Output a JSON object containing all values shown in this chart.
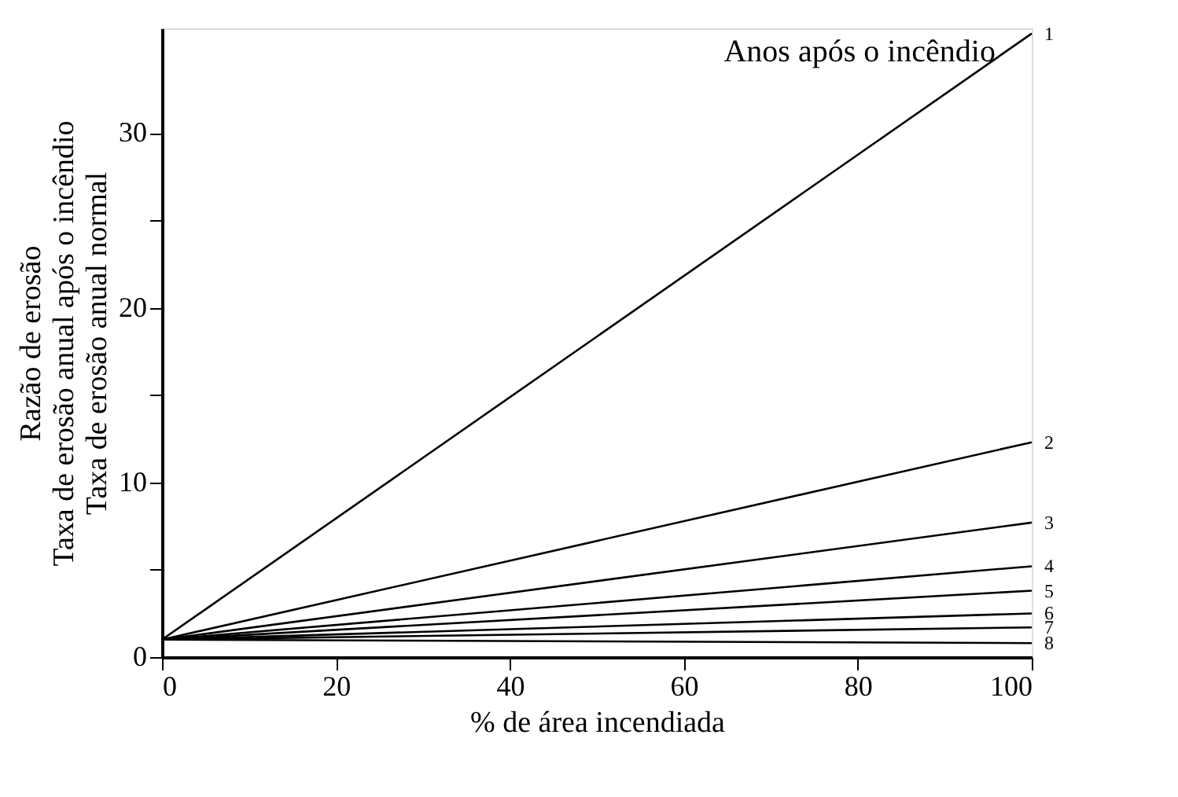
{
  "chart_data": {
    "type": "line",
    "legend_title": "Anos após o incêndio",
    "xlabel": "% de área incendiada",
    "ylabel": "Razão de erosão\nTaxa de erosão anual após o incêndio\nTaxa de erosão anual normal",
    "x": [
      0,
      100
    ],
    "series": [
      {
        "name": "1",
        "color": "#000000",
        "values": [
          1,
          35.7
        ]
      },
      {
        "name": "2",
        "color": "#000000",
        "values": [
          1,
          12.3
        ]
      },
      {
        "name": "3",
        "color": "#000000",
        "values": [
          1,
          7.7
        ]
      },
      {
        "name": "4",
        "color": "#000000",
        "values": [
          1,
          5.2
        ]
      },
      {
        "name": "5",
        "color": "#000000",
        "values": [
          1,
          3.8
        ]
      },
      {
        "name": "6",
        "color": "#000000",
        "values": [
          1,
          2.5
        ]
      },
      {
        "name": "7",
        "color": "#000000",
        "values": [
          1,
          1.7
        ]
      },
      {
        "name": "8",
        "color": "#000000",
        "values": [
          1,
          0.8
        ]
      }
    ],
    "xlim": [
      0,
      100
    ],
    "xticks": [
      0,
      20,
      40,
      60,
      80,
      100
    ],
    "ylim": [
      0,
      36
    ],
    "yticks": [
      0,
      {
        "value": 5,
        "label": null
      },
      10,
      {
        "value": 15,
        "label": null
      },
      20,
      {
        "value": 25,
        "label": null
      },
      30
    ],
    "grid": false,
    "marker": "none",
    "line_style": "solid"
  }
}
